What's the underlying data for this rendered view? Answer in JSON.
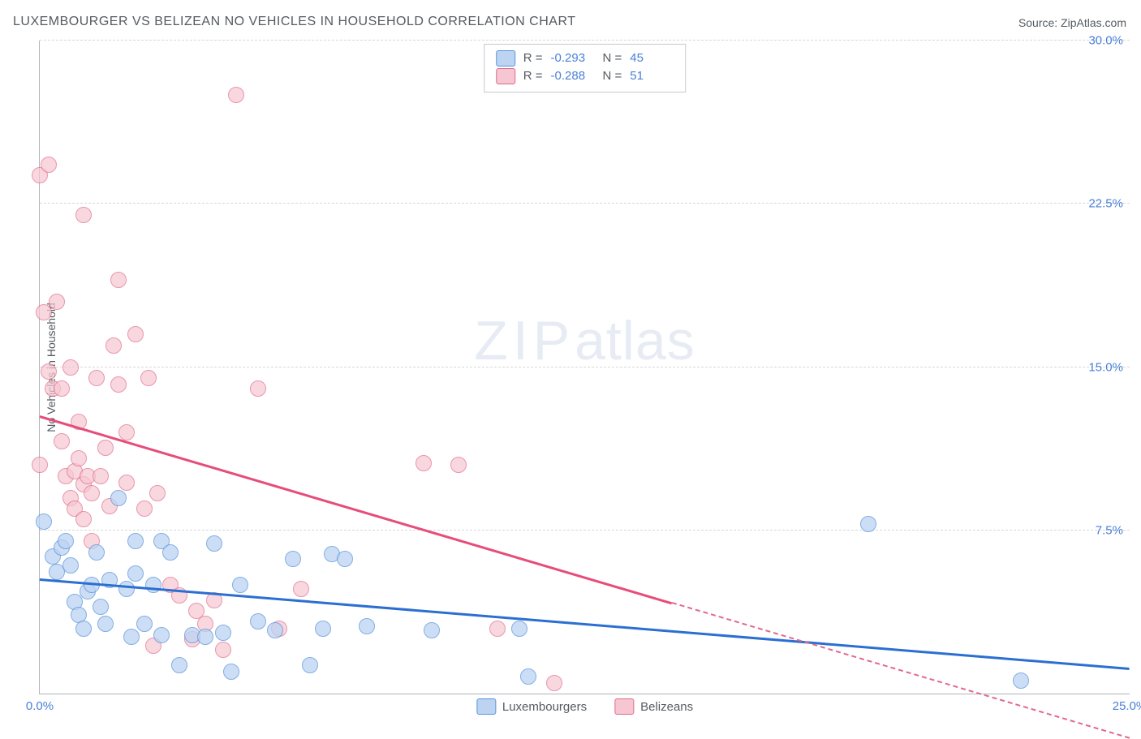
{
  "chart": {
    "type": "scatter",
    "title": "LUXEMBOURGER VS BELIZEAN NO VEHICLES IN HOUSEHOLD CORRELATION CHART",
    "source_label": "Source: ZipAtlas.com",
    "ylabel": "No Vehicles in Household",
    "title_color": "#555b62",
    "title_fontsize": 16,
    "label_fontsize": 14,
    "tick_fontsize": 15,
    "tick_color": "#4a80d6",
    "background_color": "#ffffff",
    "grid_color": "#d6d8db",
    "axis_color": "#b0b4b9",
    "xlim": [
      0,
      25
    ],
    "ylim": [
      0,
      30
    ],
    "xticks": [
      {
        "v": 0,
        "label": "0.0%"
      },
      {
        "v": 25,
        "label": "25.0%"
      }
    ],
    "yticks": [
      {
        "v": 7.5,
        "label": "7.5%"
      },
      {
        "v": 15.0,
        "label": "15.0%"
      },
      {
        "v": 22.5,
        "label": "22.5%"
      },
      {
        "v": 30.0,
        "label": "30.0%"
      }
    ],
    "watermark": {
      "zip": "ZIP",
      "atlas": "atlas"
    },
    "stat_legend": {
      "r_label": "R =",
      "n_label": "N =",
      "rows": [
        {
          "series": "lux",
          "r": "-0.293",
          "n": "45"
        },
        {
          "series": "bel",
          "r": "-0.288",
          "n": "51"
        }
      ]
    },
    "series_legend": [
      {
        "series": "lux",
        "label": "Luxembourgers"
      },
      {
        "series": "bel",
        "label": "Belizeans"
      }
    ],
    "series": {
      "lux": {
        "name": "Luxembourgers",
        "marker_fill": "#bcd4f2",
        "marker_stroke": "#5a93db",
        "marker_opacity": 0.75,
        "marker_radius": 9,
        "swatch_fill": "#bcd4f2",
        "swatch_stroke": "#5a93db",
        "line_color": "#2b6fd1",
        "trend": {
          "x1": 0,
          "y1": 5.3,
          "x2": 25,
          "y2": 1.2,
          "dash_from_x": null
        },
        "points": [
          [
            0.1,
            7.9
          ],
          [
            0.3,
            6.3
          ],
          [
            0.4,
            5.6
          ],
          [
            0.5,
            6.7
          ],
          [
            0.6,
            7.0
          ],
          [
            0.7,
            5.9
          ],
          [
            0.8,
            4.2
          ],
          [
            0.9,
            3.6
          ],
          [
            1.0,
            3.0
          ],
          [
            1.1,
            4.7
          ],
          [
            1.2,
            5.0
          ],
          [
            1.3,
            6.5
          ],
          [
            1.4,
            4.0
          ],
          [
            1.5,
            3.2
          ],
          [
            1.6,
            5.2
          ],
          [
            1.8,
            9.0
          ],
          [
            2.0,
            4.8
          ],
          [
            2.1,
            2.6
          ],
          [
            2.2,
            5.5
          ],
          [
            2.4,
            3.2
          ],
          [
            2.2,
            7.0
          ],
          [
            2.6,
            5.0
          ],
          [
            2.8,
            7.0
          ],
          [
            3.0,
            6.5
          ],
          [
            2.8,
            2.7
          ],
          [
            3.2,
            1.3
          ],
          [
            3.5,
            2.7
          ],
          [
            3.8,
            2.6
          ],
          [
            4.0,
            6.9
          ],
          [
            4.2,
            2.8
          ],
          [
            4.4,
            1.0
          ],
          [
            4.6,
            5.0
          ],
          [
            5.0,
            3.3
          ],
          [
            5.4,
            2.9
          ],
          [
            5.8,
            6.2
          ],
          [
            6.5,
            3.0
          ],
          [
            6.7,
            6.4
          ],
          [
            7.0,
            6.2
          ],
          [
            7.5,
            3.1
          ],
          [
            9.0,
            2.9
          ],
          [
            11.0,
            3.0
          ],
          [
            11.2,
            0.8
          ],
          [
            19.0,
            7.8
          ],
          [
            22.5,
            0.6
          ],
          [
            6.2,
            1.3
          ]
        ]
      },
      "bel": {
        "name": "Belizeans",
        "marker_fill": "#f6c7d2",
        "marker_stroke": "#e06a8a",
        "marker_opacity": 0.7,
        "marker_radius": 9,
        "swatch_fill": "#f6c7d2",
        "swatch_stroke": "#e06a8a",
        "line_color": "#e64d79",
        "trend": {
          "x1": 0,
          "y1": 12.8,
          "x2": 25,
          "y2": -2.0,
          "dash_from_x": 14.5
        },
        "points": [
          [
            0.0,
            23.8
          ],
          [
            0.0,
            10.5
          ],
          [
            0.1,
            17.5
          ],
          [
            0.2,
            14.8
          ],
          [
            0.2,
            24.3
          ],
          [
            0.3,
            14.0
          ],
          [
            0.4,
            18.0
          ],
          [
            0.5,
            14.0
          ],
          [
            0.5,
            11.6
          ],
          [
            0.6,
            10.0
          ],
          [
            0.7,
            15.0
          ],
          [
            0.7,
            9.0
          ],
          [
            0.8,
            10.2
          ],
          [
            0.8,
            8.5
          ],
          [
            0.9,
            12.5
          ],
          [
            0.9,
            10.8
          ],
          [
            1.0,
            22.0
          ],
          [
            1.0,
            9.6
          ],
          [
            1.0,
            8.0
          ],
          [
            1.1,
            10.0
          ],
          [
            1.2,
            9.2
          ],
          [
            1.2,
            7.0
          ],
          [
            1.3,
            14.5
          ],
          [
            1.4,
            10.0
          ],
          [
            1.5,
            11.3
          ],
          [
            1.6,
            8.6
          ],
          [
            1.7,
            16.0
          ],
          [
            1.8,
            19.0
          ],
          [
            1.8,
            14.2
          ],
          [
            2.0,
            12.0
          ],
          [
            2.0,
            9.7
          ],
          [
            2.2,
            16.5
          ],
          [
            2.4,
            8.5
          ],
          [
            2.5,
            14.5
          ],
          [
            2.7,
            9.2
          ],
          [
            3.0,
            5.0
          ],
          [
            3.2,
            4.5
          ],
          [
            3.5,
            2.5
          ],
          [
            3.6,
            3.8
          ],
          [
            4.0,
            4.3
          ],
          [
            4.2,
            2.0
          ],
          [
            4.5,
            27.5
          ],
          [
            5.0,
            14.0
          ],
          [
            5.5,
            3.0
          ],
          [
            6.0,
            4.8
          ],
          [
            8.8,
            10.6
          ],
          [
            9.6,
            10.5
          ],
          [
            10.5,
            3.0
          ],
          [
            11.8,
            0.5
          ],
          [
            2.6,
            2.2
          ],
          [
            3.8,
            3.2
          ]
        ]
      }
    }
  }
}
